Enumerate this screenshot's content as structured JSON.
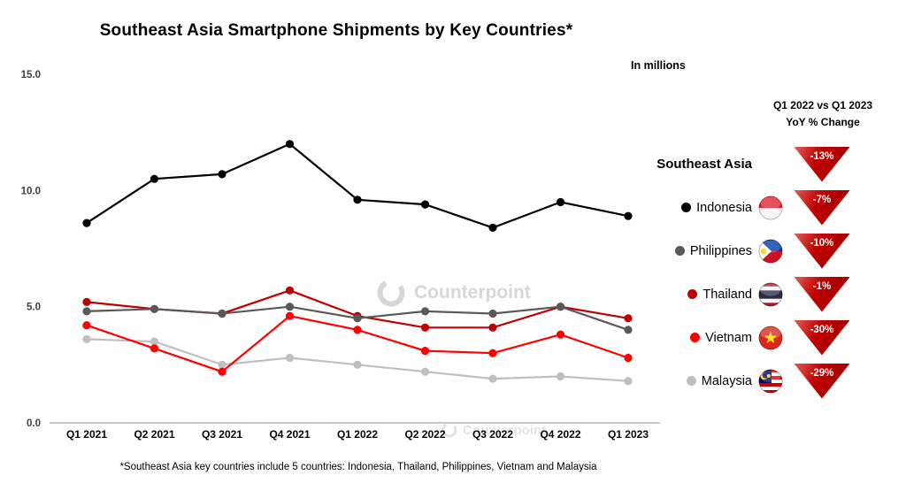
{
  "title": "Southeast Asia Smartphone Shipments by Key Countries*",
  "subtitle": "In millions",
  "watermark": "Counterpoint",
  "footnote": "*Southeast Asia key countries include 5 countries: Indonesia, Thailand, Philippines, Vietnam and Malaysia",
  "chart_data": {
    "type": "line",
    "title": "Southeast Asia Smartphone Shipments by Key Countries*",
    "units": "In millions",
    "categories": [
      "Q1 2021",
      "Q2 2021",
      "Q3 2021",
      "Q4 2021",
      "Q1 2022",
      "Q2 2022",
      "Q3 2022",
      "Q4 2022",
      "Q1 2023"
    ],
    "series": [
      {
        "name": "Indonesia",
        "color": "#000000",
        "values": [
          8.6,
          10.5,
          10.7,
          12.0,
          9.6,
          9.4,
          8.4,
          9.5,
          8.9
        ]
      },
      {
        "name": "Philippines",
        "color": "#595959",
        "values": [
          4.8,
          4.9,
          4.7,
          5.0,
          4.5,
          4.8,
          4.7,
          5.0,
          4.0
        ]
      },
      {
        "name": "Thailand",
        "color": "#C00000",
        "values": [
          5.2,
          4.9,
          4.7,
          5.7,
          4.6,
          4.1,
          4.1,
          5.0,
          4.5
        ]
      },
      {
        "name": "Vietnam",
        "color": "#FF0000",
        "values": [
          4.2,
          3.2,
          2.2,
          4.6,
          4.0,
          3.1,
          3.0,
          3.8,
          2.8
        ]
      },
      {
        "name": "Malaysia",
        "color": "#BFBFBF",
        "values": [
          3.6,
          3.5,
          2.5,
          2.8,
          2.5,
          2.2,
          1.9,
          2.0,
          1.8
        ]
      }
    ],
    "ylim": [
      0,
      15
    ],
    "yticks": [
      "0.0",
      "5.0",
      "10.0",
      "15.0"
    ],
    "grid": false,
    "legend_position": "right"
  },
  "legend": {
    "header_line1": "Q1 2022 vs Q1 2023",
    "header_line2": "YoY % Change",
    "triangle_color": "#C00000",
    "rows": [
      {
        "label": "Southeast Asia",
        "change": "-13%",
        "flag": null,
        "color": null,
        "bold": true
      },
      {
        "label": "Indonesia",
        "change": "-7%",
        "flag": "indonesia",
        "color": "#000000",
        "bold": false
      },
      {
        "label": "Philippines",
        "change": "-10%",
        "flag": "philippines",
        "color": "#595959",
        "bold": false
      },
      {
        "label": "Thailand",
        "change": "-1%",
        "flag": "thailand",
        "color": "#C00000",
        "bold": false
      },
      {
        "label": "Vietnam",
        "change": "-30%",
        "flag": "vietnam",
        "color": "#FF0000",
        "bold": false
      },
      {
        "label": "Malaysia",
        "change": "-29%",
        "flag": "malaysia",
        "color": "#BFBFBF",
        "bold": false
      }
    ]
  }
}
